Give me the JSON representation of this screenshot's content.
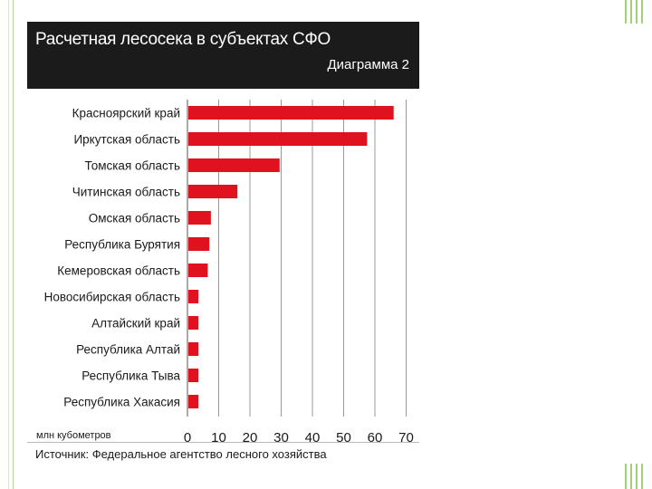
{
  "colors": {
    "bar": "#e0121f",
    "header_bg": "#1b1b1b",
    "grid": "#999999",
    "accent_green": "#9fd27a"
  },
  "chart_data": {
    "type": "bar",
    "orientation": "horizontal",
    "title": "Расчетная лесосека в субъектах СФО",
    "subtitle": "Диаграмма 2",
    "unit": "млн кубометров",
    "source": "Источник: Федеральное агентство лесного хозяйства",
    "categories": [
      "Красноярский край",
      "Иркутская область",
      "Томская область",
      "Читинская область",
      "Омская область",
      "Республика Бурятия",
      "Кемеровская область",
      "Новосибирская область",
      "Алтайский край",
      "Республика Алтай",
      "Республика Тыва",
      "Республика Хакасия"
    ],
    "values": [
      66,
      57.5,
      29.5,
      16,
      7.5,
      7,
      6.5,
      3.5,
      3.5,
      3.5,
      3.5,
      3.5
    ],
    "xlim": [
      0,
      70
    ],
    "xticks": [
      0,
      10,
      20,
      30,
      40,
      50,
      60,
      70
    ],
    "grid": true,
    "legend": "none"
  }
}
